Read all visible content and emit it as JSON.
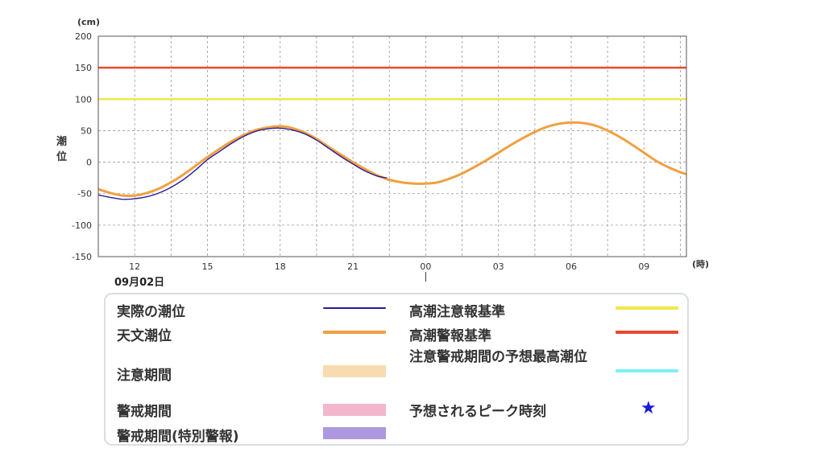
{
  "chart_data": {
    "type": "line",
    "y_unit": "(cm)",
    "x_unit": "(時)",
    "ylabel": "潮\n位",
    "date_label": "09月02日",
    "ylim": [
      -150,
      200
    ],
    "yticks": [
      200,
      150,
      100,
      50,
      0,
      -50,
      -100,
      -150
    ],
    "xlim_hours": [
      10.5,
      34.75
    ],
    "xticks": [
      {
        "hour": 12,
        "label": "12"
      },
      {
        "hour": 15,
        "label": "15"
      },
      {
        "hour": 18,
        "label": "18"
      },
      {
        "hour": 21,
        "label": "21"
      },
      {
        "hour": 24,
        "label": "00"
      },
      {
        "hour": 27,
        "label": "03"
      },
      {
        "hour": 30,
        "label": "06"
      },
      {
        "hour": 33,
        "label": "09"
      }
    ],
    "grid": true,
    "thresholds": [
      {
        "name": "高潮警報基準",
        "value": 150,
        "color": "#e84a2e"
      },
      {
        "name": "高潮注意報基準",
        "value": 100,
        "color": "#f2e64a"
      }
    ],
    "series": [
      {
        "name": "天文潮位",
        "color": "#f0a040",
        "x": [
          10.5,
          11.0,
          11.5,
          12.0,
          12.5,
          13.0,
          13.5,
          14.0,
          14.5,
          15.0,
          15.5,
          16.0,
          16.5,
          17.0,
          17.5,
          18.0,
          18.5,
          19.0,
          19.5,
          20.0,
          20.5,
          21.0,
          21.5,
          22.0,
          22.5,
          23.0,
          23.5,
          24.0,
          24.5,
          25.0,
          25.5,
          26.0,
          26.5,
          27.0,
          27.5,
          28.0,
          28.5,
          29.0,
          29.5,
          30.0,
          30.5,
          31.0,
          31.5,
          32.0,
          32.5,
          33.0,
          33.5,
          34.0,
          34.5,
          34.75
        ],
        "values": [
          -43,
          -49,
          -53,
          -53,
          -49,
          -42,
          -32,
          -20,
          -6,
          8,
          21,
          33,
          43,
          51,
          55,
          57,
          54,
          47,
          37,
          24,
          12,
          0,
          -11,
          -21,
          -28,
          -32,
          -34,
          -34,
          -32,
          -26,
          -18,
          -8,
          3,
          15,
          27,
          38,
          48,
          56,
          61,
          63,
          62,
          58,
          50,
          40,
          28,
          15,
          2,
          -8,
          -16,
          -19
        ]
      },
      {
        "name": "実際の潮位",
        "color": "#2a1d9a",
        "x": [
          10.5,
          11.0,
          11.5,
          12.0,
          12.5,
          13.0,
          13.5,
          14.0,
          14.5,
          15.0,
          15.5,
          16.0,
          16.5,
          17.0,
          17.5,
          18.0,
          18.5,
          19.0,
          19.5,
          20.0,
          20.5,
          21.0,
          21.5,
          22.0,
          22.4
        ],
        "values": [
          -52,
          -56,
          -59,
          -58,
          -55,
          -49,
          -40,
          -28,
          -13,
          4,
          17,
          30,
          41,
          49,
          53,
          54,
          51,
          45,
          35,
          22,
          9,
          -3,
          -14,
          -22,
          -25
        ]
      }
    ]
  },
  "legend": {
    "left": [
      {
        "label": "実際の潮位",
        "kind": "line",
        "color": "#2a1d9a"
      },
      {
        "label": "天文潮位",
        "kind": "line",
        "color": "#f0a040"
      },
      {
        "label": "注意期間",
        "kind": "bar",
        "color": "#f8dcb0"
      },
      {
        "label": "警戒期間",
        "kind": "bar",
        "color": "#f3b6cc"
      },
      {
        "label": "警戒期間(特別警報)",
        "kind": "bar",
        "color": "#ad98e0"
      }
    ],
    "right": [
      {
        "label": "高潮注意報基準",
        "kind": "line",
        "color": "#f2e64a"
      },
      {
        "label": "高潮警報基準",
        "kind": "line",
        "color": "#e84a2e"
      },
      {
        "label": "注意警戒期間の予想最高潮位",
        "kind": "line",
        "color": "#7af0f5"
      },
      {
        "label": "予想されるピーク時刻",
        "kind": "star",
        "color": "#1a1ad6",
        "symbol": "★"
      }
    ]
  }
}
